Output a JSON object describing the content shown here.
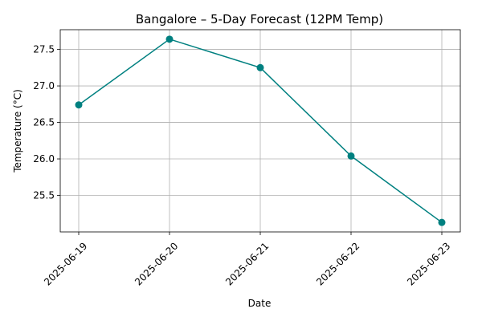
{
  "chart_data": {
    "type": "line",
    "title": "Bangalore – 5-Day Forecast (12PM Temp)",
    "xlabel": "Date",
    "ylabel": "Temperature (°C)",
    "categories": [
      "2025-06-19",
      "2025-06-20",
      "2025-06-21",
      "2025-06-22",
      "2025-06-23"
    ],
    "series": [
      {
        "values": [
          26.74,
          27.64,
          27.25,
          26.04,
          25.13
        ]
      }
    ],
    "yticks": [
      25.5,
      26.0,
      26.5,
      27.0,
      27.5
    ],
    "ytick_labels": [
      "25.5",
      "26.0",
      "26.5",
      "27.0",
      "27.5"
    ],
    "ylim": [
      25.0,
      27.77
    ],
    "grid": true,
    "line_color": "#008080",
    "marker": "circle"
  }
}
